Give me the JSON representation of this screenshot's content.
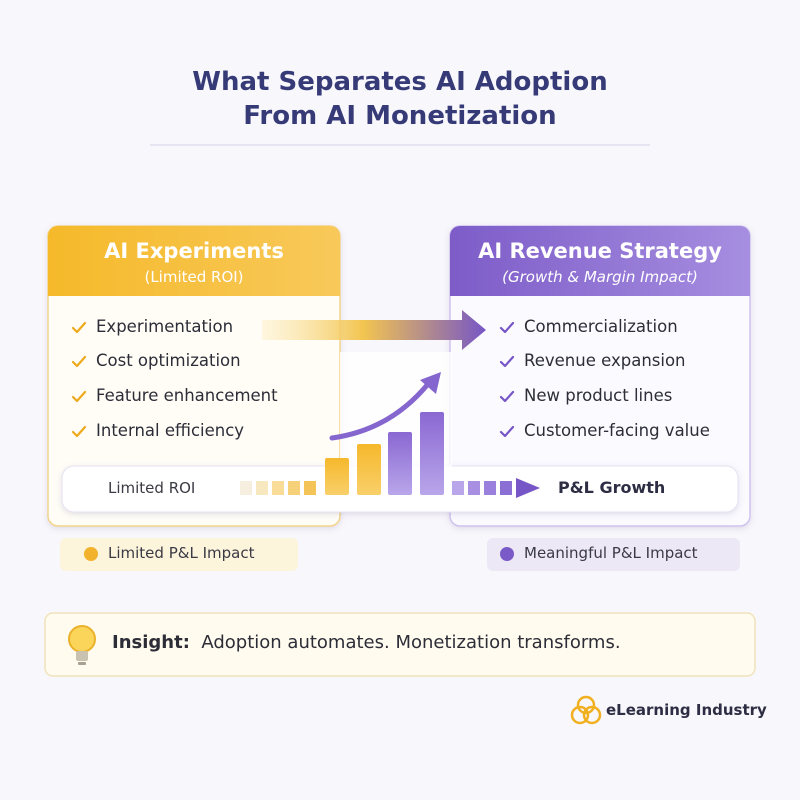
{
  "title": [
    "What Separates AI Adoption",
    "From AI Monetization"
  ],
  "left_card": {
    "title": "AI Experiments",
    "subtitle": "(Limited ROI)",
    "items": [
      "Experimentation",
      "Cost optimization",
      "Feature enhancement",
      "Internal efficiency"
    ]
  },
  "right_card": {
    "title": "AI Revenue Strategy",
    "subtitle": "(Growth & Margin Impact)",
    "items": [
      "Commercialization",
      "Revenue expansion",
      "New product lines",
      "Customer-facing value"
    ]
  },
  "progress": {
    "start": "Limited ROI",
    "end": "P&L Growth"
  },
  "badges": {
    "left": "Limited P&L Impact",
    "right": "Meaningful P&L Impact"
  },
  "insight": {
    "label": "Insight:",
    "text": "Adoption automates. Monetization transforms."
  },
  "brand": "eLearning Industry"
}
